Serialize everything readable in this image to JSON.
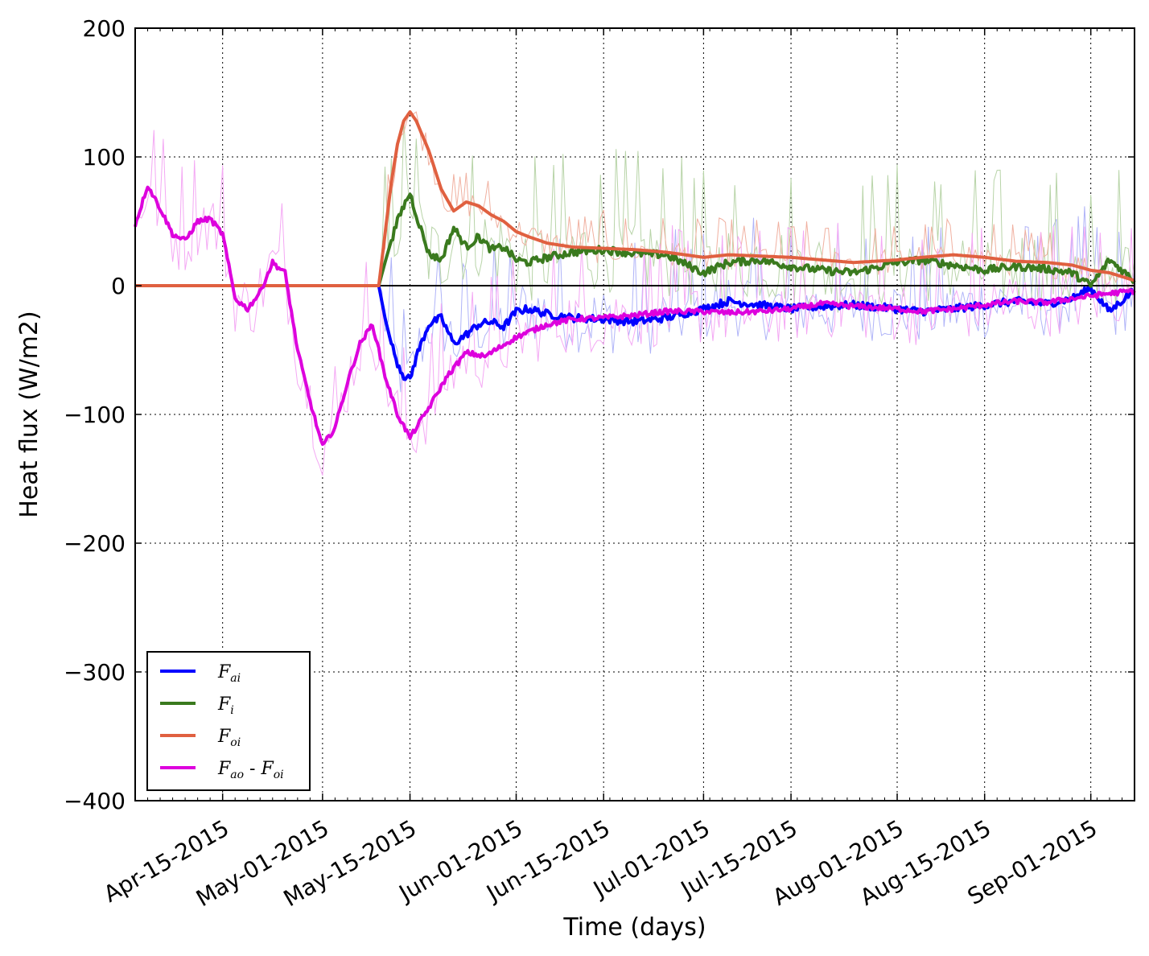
{
  "chart_data": {
    "type": "line",
    "xlabel": "Time (days)",
    "ylabel": "Heat flux (W/m2)",
    "ylim": [
      -400,
      200
    ],
    "yticks": [
      "200",
      "100",
      "0",
      "−100",
      "−200",
      "−300",
      "−400"
    ],
    "ytick_values": [
      200,
      100,
      0,
      -100,
      -200,
      -300,
      -400
    ],
    "xlim": [
      "2015-04-01",
      "2015-09-08"
    ],
    "xticks": [
      {
        "label": "Apr-15-2015",
        "date": "2015-04-15"
      },
      {
        "label": "May-01-2015",
        "date": "2015-05-01"
      },
      {
        "label": "May-15-2015",
        "date": "2015-05-15"
      },
      {
        "label": "Jun-01-2015",
        "date": "2015-06-01"
      },
      {
        "label": "Jun-15-2015",
        "date": "2015-06-15"
      },
      {
        "label": "Jul-01-2015",
        "date": "2015-07-01"
      },
      {
        "label": "Jul-15-2015",
        "date": "2015-07-15"
      },
      {
        "label": "Aug-01-2015",
        "date": "2015-08-01"
      },
      {
        "label": "Aug-15-2015",
        "date": "2015-08-15"
      },
      {
        "label": "Sep-01-2015",
        "date": "2015-09-01"
      }
    ],
    "grid": true,
    "legend_position": "lower-left",
    "legend": [
      {
        "main": "F",
        "sub": "ai",
        "color": "#0000ff"
      },
      {
        "main": "F",
        "sub": "i",
        "color": "#3a7a1e"
      },
      {
        "main": "F",
        "sub": "oi",
        "color": "#e06040"
      },
      {
        "main": "F",
        "sub": "ao",
        "extra": " - ",
        "main2": "F",
        "sub2": "oi",
        "color": "#dd00dd"
      }
    ],
    "series": [
      {
        "color": "#0000ff",
        "x": [
          "2015-04-01",
          "2015-05-10",
          "2015-05-11",
          "2015-05-12",
          "2015-05-13",
          "2015-05-14",
          "2015-05-15",
          "2015-05-16",
          "2015-05-18",
          "2015-05-20",
          "2015-05-22",
          "2015-05-24",
          "2015-05-26",
          "2015-05-28",
          "2015-05-30",
          "2015-06-01",
          "2015-06-03",
          "2015-06-06",
          "2015-06-10",
          "2015-06-15",
          "2015-06-20",
          "2015-06-25",
          "2015-07-01",
          "2015-07-05",
          "2015-07-10",
          "2015-07-15",
          "2015-07-20",
          "2015-07-25",
          "2015-08-01",
          "2015-08-05",
          "2015-08-10",
          "2015-08-15",
          "2015-08-20",
          "2015-08-25",
          "2015-08-29",
          "2015-09-01",
          "2015-09-04",
          "2015-09-08"
        ],
        "y": [
          0,
          0,
          -25,
          -45,
          -60,
          -70,
          -73,
          -55,
          -30,
          -25,
          -45,
          -38,
          -30,
          -28,
          -32,
          -20,
          -18,
          -22,
          -25,
          -26,
          -28,
          -25,
          -18,
          -12,
          -15,
          -18,
          -16,
          -15,
          -18,
          -20,
          -18,
          -15,
          -12,
          -14,
          -10,
          -2,
          -20,
          -3
        ]
      },
      {
        "color": "#3a7a1e",
        "x": [
          "2015-04-01",
          "2015-05-10",
          "2015-05-11",
          "2015-05-12",
          "2015-05-13",
          "2015-05-14",
          "2015-05-15",
          "2015-05-16",
          "2015-05-18",
          "2015-05-20",
          "2015-05-22",
          "2015-05-24",
          "2015-05-26",
          "2015-05-28",
          "2015-05-30",
          "2015-06-01",
          "2015-06-03",
          "2015-06-06",
          "2015-06-10",
          "2015-06-15",
          "2015-06-20",
          "2015-06-25",
          "2015-07-01",
          "2015-07-05",
          "2015-07-10",
          "2015-07-15",
          "2015-07-20",
          "2015-07-25",
          "2015-08-01",
          "2015-08-05",
          "2015-08-10",
          "2015-08-15",
          "2015-08-20",
          "2015-08-25",
          "2015-08-29",
          "2015-09-01",
          "2015-09-04",
          "2015-09-08"
        ],
        "y": [
          0,
          0,
          18,
          35,
          50,
          62,
          72,
          55,
          25,
          20,
          45,
          30,
          38,
          28,
          30,
          20,
          18,
          22,
          26,
          28,
          25,
          24,
          10,
          18,
          20,
          15,
          12,
          10,
          18,
          20,
          16,
          12,
          15,
          13,
          10,
          0,
          20,
          4
        ]
      },
      {
        "color": "#e06040",
        "x": [
          "2015-04-01",
          "2015-05-10",
          "2015-05-11",
          "2015-05-12",
          "2015-05-13",
          "2015-05-14",
          "2015-05-15",
          "2015-05-16",
          "2015-05-18",
          "2015-05-20",
          "2015-05-22",
          "2015-05-24",
          "2015-05-26",
          "2015-05-28",
          "2015-05-30",
          "2015-06-01",
          "2015-06-03",
          "2015-06-06",
          "2015-06-10",
          "2015-06-15",
          "2015-06-20",
          "2015-06-25",
          "2015-07-01",
          "2015-07-05",
          "2015-07-10",
          "2015-07-15",
          "2015-07-20",
          "2015-07-25",
          "2015-08-01",
          "2015-08-05",
          "2015-08-10",
          "2015-08-15",
          "2015-08-20",
          "2015-08-25",
          "2015-08-29",
          "2015-09-01",
          "2015-09-04",
          "2015-09-08"
        ],
        "y": [
          0,
          0,
          40,
          80,
          110,
          128,
          135,
          128,
          105,
          75,
          58,
          65,
          62,
          55,
          50,
          42,
          38,
          33,
          30,
          29,
          28,
          26,
          22,
          24,
          23,
          22,
          20,
          18,
          20,
          22,
          24,
          22,
          19,
          18,
          16,
          12,
          10,
          4
        ]
      },
      {
        "color": "#dd00dd",
        "x": [
          "2015-04-01",
          "2015-04-03",
          "2015-04-05",
          "2015-04-07",
          "2015-04-09",
          "2015-04-11",
          "2015-04-13",
          "2015-04-15",
          "2015-04-17",
          "2015-04-19",
          "2015-04-21",
          "2015-04-23",
          "2015-04-25",
          "2015-04-27",
          "2015-04-29",
          "2015-05-01",
          "2015-05-03",
          "2015-05-05",
          "2015-05-07",
          "2015-05-09",
          "2015-05-11",
          "2015-05-13",
          "2015-05-15",
          "2015-05-18",
          "2015-05-21",
          "2015-05-24",
          "2015-05-27",
          "2015-06-01",
          "2015-06-06",
          "2015-06-10",
          "2015-06-15",
          "2015-06-20",
          "2015-06-25",
          "2015-07-01",
          "2015-07-05",
          "2015-07-10",
          "2015-07-15",
          "2015-07-20",
          "2015-07-25",
          "2015-08-01",
          "2015-08-05",
          "2015-08-10",
          "2015-08-15",
          "2015-08-20",
          "2015-08-25",
          "2015-08-29",
          "2015-09-01",
          "2015-09-04",
          "2015-09-08"
        ],
        "y": [
          47,
          78,
          60,
          40,
          35,
          50,
          52,
          40,
          -10,
          -18,
          -5,
          18,
          10,
          -50,
          -90,
          -125,
          -110,
          -75,
          -45,
          -30,
          -70,
          -100,
          -118,
          -95,
          -70,
          -52,
          -55,
          -40,
          -30,
          -26,
          -25,
          -23,
          -20,
          -20,
          -21,
          -20,
          -18,
          -14,
          -16,
          -18,
          -20,
          -18,
          -15,
          -12,
          -13,
          -10,
          -8,
          -6,
          -4
        ]
      }
    ]
  }
}
